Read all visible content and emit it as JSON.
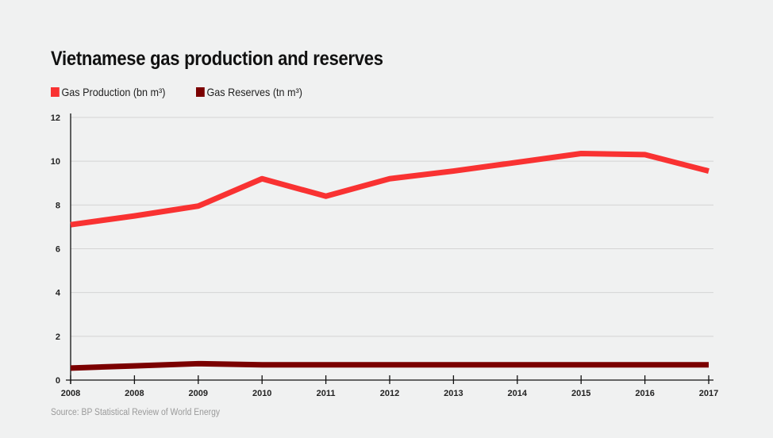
{
  "chart_data": {
    "type": "line",
    "title": "Vietnamese gas production and reserves",
    "xlabel": "",
    "ylabel": "",
    "x": [
      "2008",
      "2008",
      "2009",
      "2010",
      "2011",
      "2012",
      "2013",
      "2014",
      "2015",
      "2016",
      "2017"
    ],
    "ylim": [
      0,
      12
    ],
    "yticks": [
      0,
      2,
      4,
      6,
      8,
      10,
      12
    ],
    "grid": true,
    "legend_position": "top-left",
    "series": [
      {
        "name": "Gas Production (bn m³)",
        "color": "#f93232",
        "values": [
          7.1,
          7.5,
          7.95,
          9.2,
          8.4,
          9.2,
          9.55,
          9.95,
          10.35,
          10.3,
          9.55
        ]
      },
      {
        "name": "Gas Reserves (tn m³)",
        "color": "#7b0000",
        "values": [
          0.55,
          0.65,
          0.75,
          0.7,
          0.7,
          0.7,
          0.7,
          0.7,
          0.7,
          0.7,
          0.7
        ]
      }
    ],
    "source": "Source: BP Statistical Review of World Energy"
  }
}
